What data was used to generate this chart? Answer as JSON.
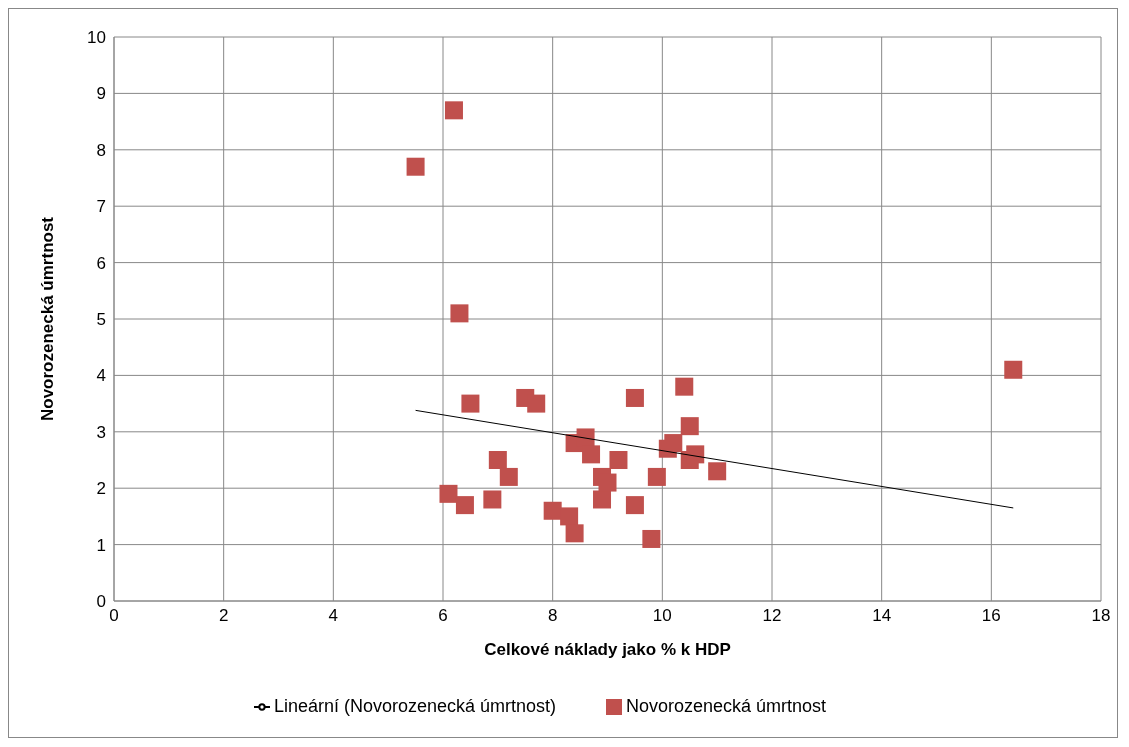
{
  "chart_data": {
    "type": "scatter",
    "xlabel": "Celkové náklady jako % k HDP",
    "ylabel": "Novorozenecká úmrtnost",
    "xlim": [
      0,
      18
    ],
    "xticks": [
      0,
      2,
      4,
      6,
      8,
      10,
      12,
      14,
      16,
      18
    ],
    "ylim": [
      0,
      10
    ],
    "yticks": [
      0,
      1,
      2,
      3,
      4,
      5,
      6,
      7,
      8,
      9,
      10
    ],
    "grid": true,
    "legend": "bottom",
    "marker": "square",
    "series": [
      {
        "name": "Novorozenecká úmrtnost",
        "color": "#c0504d",
        "x": [
          5.5,
          6.2,
          6.3,
          6.5,
          6.1,
          6.4,
          6.9,
          7.0,
          7.2,
          7.5,
          7.7,
          8.0,
          8.3,
          8.4,
          8.4,
          8.6,
          8.7,
          8.9,
          8.9,
          9.0,
          9.2,
          9.5,
          9.5,
          9.8,
          9.9,
          10.1,
          10.2,
          10.4,
          10.5,
          10.5,
          10.6,
          11.0,
          16.4
        ],
        "values": [
          7.7,
          8.7,
          5.1,
          3.5,
          1.9,
          1.7,
          1.8,
          2.5,
          2.2,
          3.6,
          3.5,
          1.6,
          1.5,
          1.2,
          2.8,
          2.9,
          2.6,
          2.2,
          1.8,
          2.1,
          2.5,
          3.6,
          1.7,
          1.1,
          2.2,
          2.7,
          2.8,
          3.8,
          3.1,
          2.5,
          2.6,
          2.3,
          4.1
        ]
      },
      {
        "name": "Lineární (Novorozenecká úmrtnost)",
        "type": "line",
        "color": "#000000",
        "marker": "none",
        "x": [
          5.5,
          16.4
        ],
        "values": [
          3.38,
          1.65
        ]
      }
    ]
  }
}
